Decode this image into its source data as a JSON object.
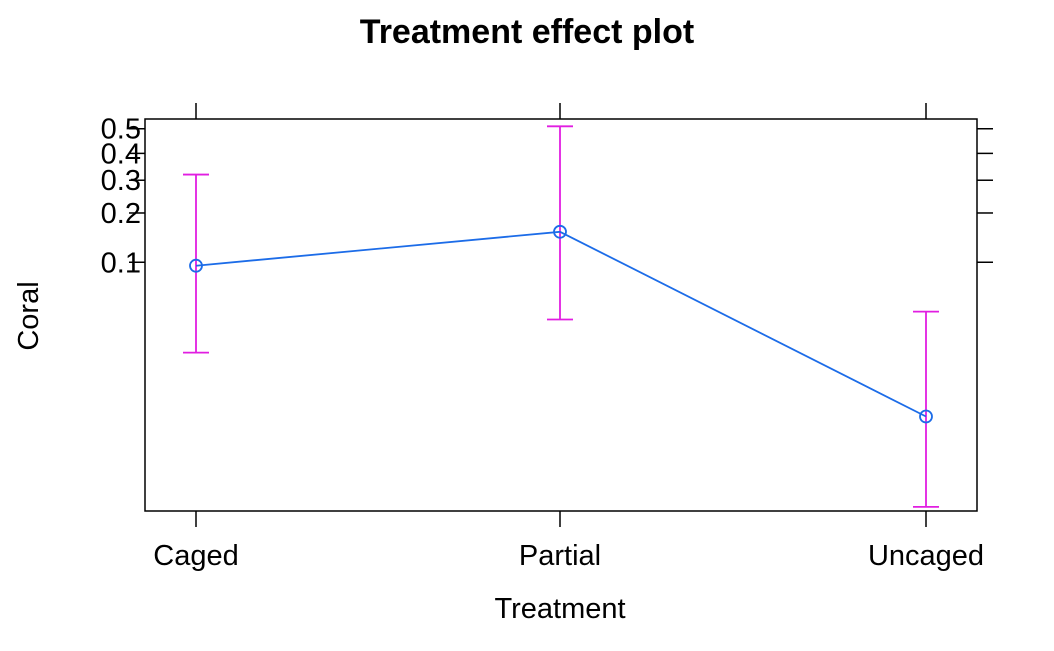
{
  "chart_data": {
    "type": "line",
    "title": "Treatment effect plot",
    "xlabel": "Treatment",
    "ylabel": "Coral",
    "categories": [
      "Caged",
      "Partial",
      "Uncaged"
    ],
    "scale": "logit",
    "ylim": [
      0.00185,
      0.54
    ],
    "yticks": [
      {
        "value": 0.1,
        "label": "0.1"
      },
      {
        "value": 0.2,
        "label": "0.2"
      },
      {
        "value": 0.3,
        "label": "0.3"
      },
      {
        "value": 0.4,
        "label": "0.4"
      },
      {
        "value": 0.5,
        "label": "0.5"
      }
    ],
    "series": [
      {
        "values": [
          0.095,
          0.155,
          0.0087
        ],
        "lower": [
          0.0245,
          0.0415,
          0.00198
        ],
        "upper": [
          0.32,
          0.51,
          0.047
        ]
      }
    ],
    "grid": false,
    "colors": {
      "line": "#1c6ce8",
      "error_bar": "#e11ee1",
      "axis": "#000000"
    }
  }
}
